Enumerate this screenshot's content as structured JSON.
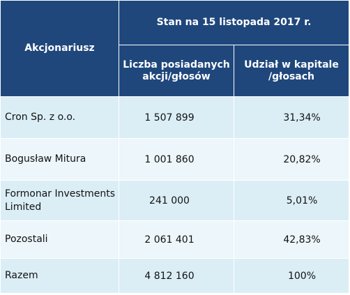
{
  "header": {
    "shareholder_col": "Akcjonariusz",
    "group_title": "Stan na 15 listopada 2017 r.",
    "shares_col": "Liczba posiadanych akcji/głosów",
    "share_pct_col": "Udział w kapitale /głosach"
  },
  "rows": [
    {
      "name": "Cron Sp. z o.o.",
      "shares": "1 507 899",
      "pct": "31,34%"
    },
    {
      "name": "Bogusław Mitura",
      "shares": "1 001 860",
      "pct": "20,82%"
    },
    {
      "name": "Formonar Investments Limited",
      "shares": "241 000",
      "pct": "5,01%"
    },
    {
      "name": "Pozostali",
      "shares": "2 061 401",
      "pct": "42,83%"
    },
    {
      "name": "Razem",
      "shares": "4 812 160",
      "pct": "100%"
    }
  ],
  "colors": {
    "header_bg": "#1f477c",
    "row_bg_dark": "#dbeef6",
    "row_bg_light": "#edf6fa"
  }
}
